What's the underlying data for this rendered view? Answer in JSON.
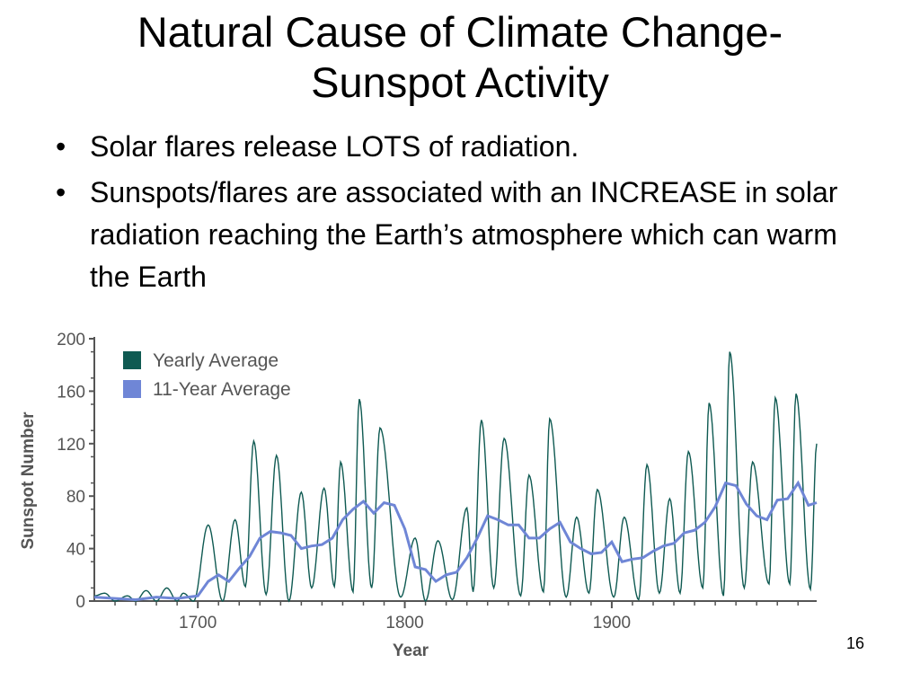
{
  "slide": {
    "title_line1": "Natural Cause of Climate Change-",
    "title_line2": "Sunspot Activity",
    "bullets": [
      "Solar flares release LOTS of radiation.",
      "Sunspots/flares are associated with an INCREASE in solar radiation reaching the Earth’s atmosphere which can warm the Earth"
    ],
    "bullet_glyph": "•",
    "page_number": "16"
  },
  "colors": {
    "yearly": "#0f5a52",
    "eleven_year": "#6f86d6",
    "axis": "#555555",
    "label": "#555555"
  },
  "chart_data": {
    "type": "line",
    "title": "",
    "xlabel": "Year",
    "ylabel": "Sunspot Number",
    "xlim": [
      1650,
      1999
    ],
    "ylim": [
      0,
      200
    ],
    "x_ticks": [
      1700,
      1800,
      1900
    ],
    "y_ticks": [
      0,
      40,
      80,
      120,
      160,
      200
    ],
    "legend_position": "top-left",
    "series": [
      {
        "name": "Yearly Average",
        "kind": "cycle_peaks",
        "peaks": [
          [
            1655,
            6
          ],
          [
            1666,
            4
          ],
          [
            1675,
            8
          ],
          [
            1685,
            10
          ],
          [
            1693,
            6
          ],
          [
            1705,
            58
          ],
          [
            1718,
            62
          ],
          [
            1727,
            122
          ],
          [
            1738,
            111
          ],
          [
            1750,
            83
          ],
          [
            1761,
            86
          ],
          [
            1769,
            106
          ],
          [
            1778,
            154
          ],
          [
            1788,
            132
          ],
          [
            1805,
            48
          ],
          [
            1816,
            46
          ],
          [
            1830,
            71
          ],
          [
            1837,
            138
          ],
          [
            1848,
            124
          ],
          [
            1860,
            96
          ],
          [
            1870,
            139
          ],
          [
            1883,
            64
          ],
          [
            1893,
            85
          ],
          [
            1906,
            64
          ],
          [
            1917,
            104
          ],
          [
            1928,
            78
          ],
          [
            1937,
            114
          ],
          [
            1947,
            151
          ],
          [
            1957,
            190
          ],
          [
            1968,
            106
          ],
          [
            1979,
            155
          ],
          [
            1989,
            158
          ],
          [
            1999,
            120
          ]
        ],
        "minima": [
          [
            1660,
            0
          ],
          [
            1670,
            0
          ],
          [
            1680,
            0
          ],
          [
            1690,
            0
          ],
          [
            1698,
            0
          ],
          [
            1712,
            0
          ],
          [
            1723,
            11
          ],
          [
            1733,
            5
          ],
          [
            1744,
            0
          ],
          [
            1755,
            10
          ],
          [
            1766,
            11
          ],
          [
            1775,
            7
          ],
          [
            1784,
            10
          ],
          [
            1798,
            3
          ],
          [
            1810,
            0
          ],
          [
            1823,
            1
          ],
          [
            1833,
            7
          ],
          [
            1843,
            10
          ],
          [
            1856,
            4
          ],
          [
            1867,
            7
          ],
          [
            1878,
            3
          ],
          [
            1889,
            6
          ],
          [
            1901,
            3
          ],
          [
            1913,
            1
          ],
          [
            1923,
            6
          ],
          [
            1933,
            6
          ],
          [
            1944,
            10
          ],
          [
            1954,
            4
          ],
          [
            1964,
            10
          ],
          [
            1976,
            13
          ],
          [
            1986,
            13
          ],
          [
            1996,
            9
          ]
        ]
      },
      {
        "name": "11-Year Average",
        "x": [
          1650,
          1660,
          1670,
          1680,
          1690,
          1700,
          1705,
          1710,
          1715,
          1720,
          1725,
          1730,
          1735,
          1740,
          1745,
          1750,
          1755,
          1760,
          1765,
          1770,
          1775,
          1780,
          1785,
          1790,
          1795,
          1800,
          1805,
          1810,
          1815,
          1820,
          1825,
          1830,
          1835,
          1840,
          1845,
          1850,
          1855,
          1860,
          1865,
          1870,
          1875,
          1880,
          1885,
          1890,
          1895,
          1900,
          1905,
          1910,
          1915,
          1920,
          1925,
          1930,
          1935,
          1940,
          1945,
          1950,
          1955,
          1960,
          1965,
          1970,
          1975,
          1980,
          1985,
          1990,
          1995,
          1999
        ],
        "values": [
          3,
          2,
          1,
          3,
          2,
          4,
          15,
          20,
          15,
          25,
          34,
          48,
          53,
          52,
          50,
          40,
          42,
          43,
          48,
          62,
          70,
          76,
          67,
          75,
          73,
          55,
          26,
          24,
          15,
          20,
          22,
          33,
          48,
          65,
          62,
          58,
          58,
          48,
          48,
          55,
          60,
          45,
          40,
          36,
          37,
          45,
          30,
          32,
          33,
          38,
          42,
          44,
          52,
          54,
          60,
          72,
          90,
          88,
          74,
          65,
          62,
          77,
          78,
          90,
          73,
          75
        ]
      }
    ]
  }
}
